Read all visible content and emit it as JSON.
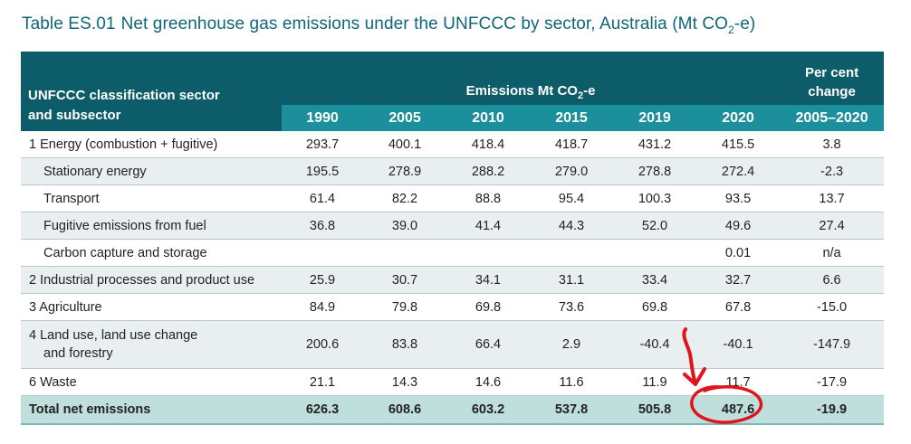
{
  "title": {
    "code": "Table ES.01",
    "text_before_sub": "Net greenhouse gas emissions under the UNFCCC by sector, Australia (Mt CO",
    "sub": "2",
    "text_after_sub": "-e)"
  },
  "header": {
    "sector_line1": "UNFCCC classification sector",
    "sector_line2": "and subsector",
    "group_before_sub": "Emissions Mt CO",
    "group_sub": "2",
    "group_after_sub": "-e",
    "pct_line1": "Per cent",
    "pct_line2": "change",
    "years": [
      "1990",
      "2005",
      "2010",
      "2015",
      "2019",
      "2020"
    ],
    "pct_period": "2005–2020"
  },
  "rows": [
    {
      "label": "1  Energy (combustion + fugitive)",
      "values": [
        "293.7",
        "400.1",
        "418.4",
        "418.7",
        "431.2",
        "415.5"
      ],
      "pct": "3.8"
    },
    {
      "label": "Stationary energy",
      "values": [
        "195.5",
        "278.9",
        "288.2",
        "279.0",
        "278.8",
        "272.4"
      ],
      "pct": "-2.3"
    },
    {
      "label": "Transport",
      "values": [
        "61.4",
        "82.2",
        "88.8",
        "95.4",
        "100.3",
        "93.5"
      ],
      "pct": "13.7"
    },
    {
      "label": "Fugitive emissions from fuel",
      "values": [
        "36.8",
        "39.0",
        "41.4",
        "44.3",
        "52.0",
        "49.6"
      ],
      "pct": "27.4"
    },
    {
      "label": "Carbon capture and storage",
      "values": [
        "",
        "",
        "",
        "",
        "",
        "0.01"
      ],
      "pct": "n/a"
    },
    {
      "label": "2  Industrial processes and product use",
      "values": [
        "25.9",
        "30.7",
        "34.1",
        "31.1",
        "33.4",
        "32.7"
      ],
      "pct": "6.6"
    },
    {
      "label": "3  Agriculture",
      "values": [
        "84.9",
        "79.8",
        "69.8",
        "73.6",
        "69.8",
        "67.8"
      ],
      "pct": "-15.0"
    },
    {
      "label_line1": "4  Land use, land use change",
      "label_line2": "and forestry",
      "values": [
        "200.6",
        "83.8",
        "66.4",
        "2.9",
        "-40.4",
        "-40.1"
      ],
      "pct": "-147.9"
    },
    {
      "label": "6  Waste",
      "values": [
        "21.1",
        "14.3",
        "14.6",
        "11.6",
        "11.9",
        "11.7"
      ],
      "pct": "-17.9"
    }
  ],
  "total": {
    "label": "Total net emissions",
    "values": [
      "626.3",
      "608.6",
      "603.2",
      "537.8",
      "505.8",
      "487.6"
    ],
    "pct": "-19.9"
  },
  "annotation_color": "#e0151b"
}
